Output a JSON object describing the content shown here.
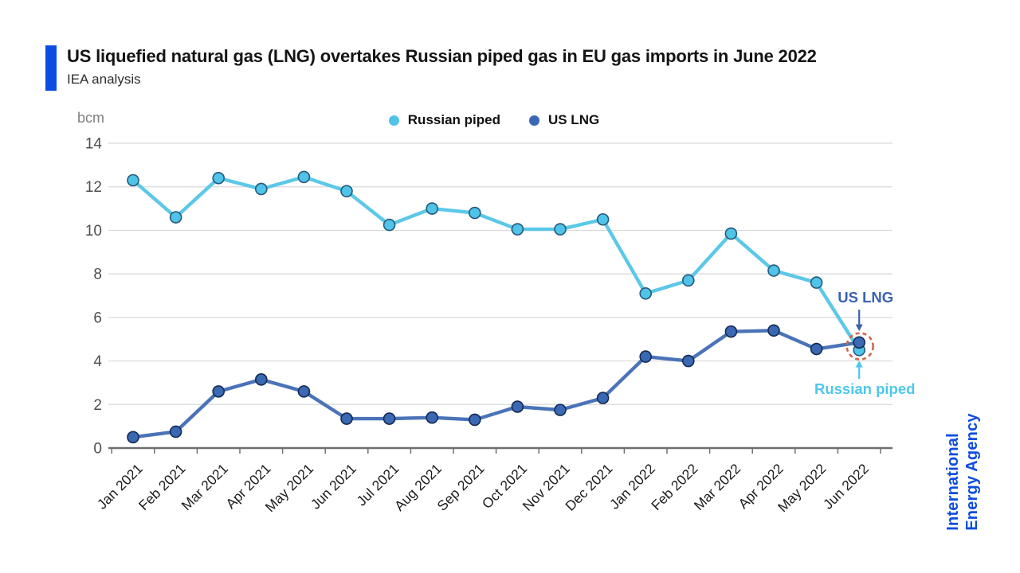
{
  "header": {
    "title": "US liquefied natural gas (LNG) overtakes Russian piped gas in EU gas imports in June 2022",
    "subtitle": "IEA analysis"
  },
  "colors": {
    "accent_blue": "#0d4ce0",
    "russian_piped": "#5cc8e8",
    "us_lng": "#4a73b8",
    "grid": "#d9d9d9",
    "axis": "#6e6e6e",
    "highlight_ring": "#d2674e"
  },
  "chart_data": {
    "type": "line",
    "title": "US liquefied natural gas (LNG) overtakes Russian piped gas in EU gas imports in June 2022",
    "unit_label": "bcm",
    "xlabel": "",
    "ylabel": "bcm",
    "ylim": [
      0,
      14
    ],
    "ytick_step": 2,
    "grid": true,
    "legend_position": "top",
    "categories": [
      "Jan 2021",
      "Feb 2021",
      "Mar 2021",
      "Apr 2021",
      "May 2021",
      "Jun 2021",
      "Jul 2021",
      "Aug 2021",
      "Sep 2021",
      "Oct 2021",
      "Nov 2021",
      "Dec 2021",
      "Jan 2022",
      "Feb 2022",
      "Mar 2022",
      "Apr 2022",
      "May 2022",
      "Jun 2022"
    ],
    "series": [
      {
        "name": "Russian piped",
        "line_color": "#5cc8e8",
        "marker_fill": "#4fc3e8",
        "marker_stroke": "#27587a",
        "values": [
          12.3,
          10.6,
          12.4,
          11.9,
          12.45,
          11.8,
          10.25,
          11.0,
          10.8,
          10.05,
          10.05,
          10.5,
          7.1,
          7.7,
          9.85,
          8.15,
          7.6,
          4.5
        ]
      },
      {
        "name": "US LNG",
        "line_color": "#4a73b8",
        "marker_fill": "#3a68b2",
        "marker_stroke": "#132a52",
        "values": [
          0.5,
          0.75,
          2.6,
          3.15,
          2.6,
          1.35,
          1.35,
          1.4,
          1.3,
          1.9,
          1.75,
          2.3,
          4.2,
          4.0,
          5.35,
          5.4,
          4.55,
          4.85
        ]
      }
    ],
    "annotations": {
      "us_lng_label": "US LNG",
      "us_lng_color": "#3a62ae",
      "russian_piped_label": "Russian piped",
      "russian_piped_color": "#4ec7ea",
      "highlight_month": "Jun 2022",
      "highlight_ring_color": "#d2674e"
    }
  },
  "agency": {
    "line1": "International",
    "line2": "Energy Agency"
  }
}
